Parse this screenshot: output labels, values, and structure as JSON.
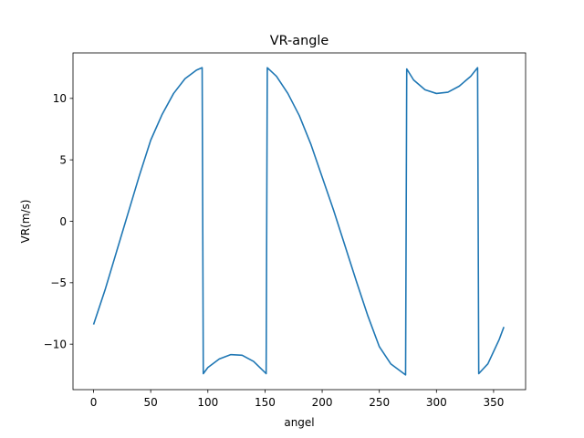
{
  "chart_data": {
    "type": "line",
    "title": "VR-angle",
    "xlabel": "angel",
    "ylabel": "VR(m/s)",
    "xlim": [
      -18,
      378
    ],
    "ylim": [
      -13.7,
      13.7
    ],
    "x_ticks": [
      0,
      50,
      100,
      150,
      200,
      250,
      300,
      350
    ],
    "y_ticks": [
      -10,
      -5,
      0,
      5,
      10
    ],
    "y_tick_labels": [
      "−10",
      "−5",
      "0",
      "5",
      "10"
    ],
    "grid": false,
    "legend": "none",
    "series": [
      {
        "color": "#1f77b4",
        "x": [
          0,
          10,
          20,
          30,
          40,
          50,
          60,
          70,
          80,
          90,
          95,
          96,
          100,
          110,
          120,
          130,
          140,
          151,
          152,
          160,
          170,
          180,
          190,
          200,
          210,
          220,
          230,
          240,
          250,
          260,
          273,
          274,
          280,
          290,
          300,
          310,
          320,
          330,
          336,
          337,
          345,
          355,
          359
        ],
        "y": [
          -8.4,
          -5.6,
          -2.5,
          0.6,
          3.7,
          6.6,
          8.7,
          10.4,
          11.6,
          12.3,
          12.5,
          -12.4,
          -11.9,
          -11.2,
          -10.85,
          -10.9,
          -11.4,
          -12.4,
          12.5,
          11.8,
          10.4,
          8.6,
          6.3,
          3.6,
          0.9,
          -2.0,
          -4.9,
          -7.7,
          -10.2,
          -11.6,
          -12.5,
          12.4,
          11.5,
          10.7,
          10.4,
          10.5,
          11.0,
          11.8,
          12.5,
          -12.4,
          -11.6,
          -9.6,
          -8.6
        ]
      }
    ]
  }
}
